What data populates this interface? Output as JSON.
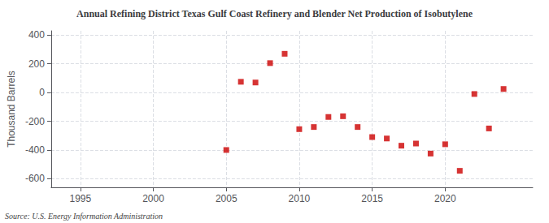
{
  "chart_data": {
    "type": "scatter",
    "title": "Annual Refining District Texas Gulf Coast Refinery and Blender Net Production of Isobutylene",
    "ylabel": "Thousand Barrels",
    "annotation": "Source: U.S. Energy Information Administration",
    "x": [
      2005,
      2006,
      2007,
      2008,
      2009,
      2010,
      2011,
      2012,
      2013,
      2014,
      2015,
      2016,
      2017,
      2018,
      2019,
      2020,
      2021,
      2022,
      2023,
      2024
    ],
    "values": [
      -400,
      75,
      70,
      205,
      270,
      -255,
      -240,
      -170,
      -165,
      -240,
      -310,
      -320,
      -370,
      -355,
      -425,
      -360,
      -545,
      -10,
      -250,
      25
    ],
    "color": "#cc0000",
    "marker": "square",
    "xlim": [
      1993,
      2026
    ],
    "ylim": [
      -660,
      430
    ],
    "xticks": [
      1995,
      2000,
      2005,
      2010,
      2015,
      2020
    ],
    "yticks": [
      -600,
      -400,
      -200,
      0,
      200,
      400
    ],
    "grid": true
  }
}
